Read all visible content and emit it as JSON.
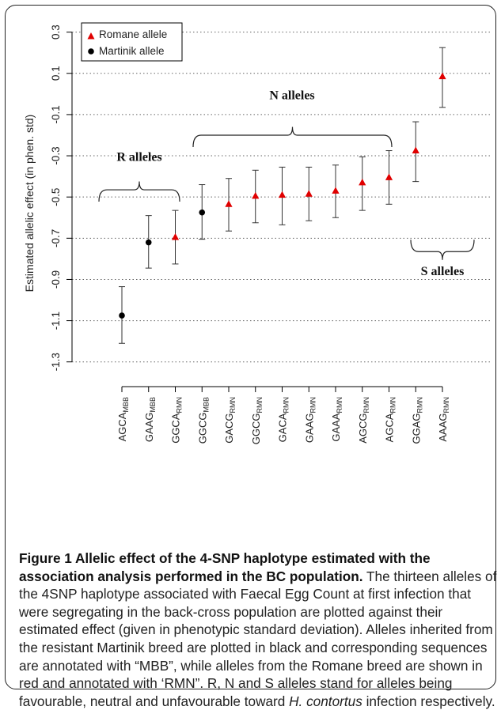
{
  "chart_data": {
    "type": "scatter",
    "ylabel": "Estimated allelic effect (in phen. std)",
    "ylim": [
      -1.42,
      0.36
    ],
    "yticks": [
      0.3,
      0.1,
      -0.1,
      -0.3,
      -0.5,
      -0.7,
      -0.9,
      -1.1,
      -1.3
    ],
    "ytick_labels": [
      "0.3",
      "0.1",
      "-0.1",
      "-0.3",
      "-0.5",
      "-0.7",
      "-0.9",
      "-1.1",
      "-1.3"
    ],
    "grid": "horizontal dotted",
    "legend_position": "top-left",
    "legend": [
      {
        "label": "Romane allele",
        "marker": "triangle",
        "color": "#e00000"
      },
      {
        "label": "Martinik allele",
        "marker": "circle",
        "color": "#000000"
      }
    ],
    "categories": [
      {
        "base": "AGCA",
        "sub": "MBB",
        "origin": "Martinik"
      },
      {
        "base": "GAAG",
        "sub": "MBB",
        "origin": "Martinik"
      },
      {
        "base": "GGCA",
        "sub": "RMN",
        "origin": "Romane"
      },
      {
        "base": "GGCG",
        "sub": "MBB",
        "origin": "Martinik"
      },
      {
        "base": "GACG",
        "sub": "RMN",
        "origin": "Romane"
      },
      {
        "base": "GGCG",
        "sub": "RMN",
        "origin": "Romane"
      },
      {
        "base": "GACA",
        "sub": "RMN",
        "origin": "Romane"
      },
      {
        "base": "GAAG",
        "sub": "RMN",
        "origin": "Romane"
      },
      {
        "base": "GAAA",
        "sub": "RMN",
        "origin": "Romane"
      },
      {
        "base": "AGCG",
        "sub": "RMN",
        "origin": "Romane"
      },
      {
        "base": "AGCA",
        "sub": "RMN",
        "origin": "Romane"
      },
      {
        "base": "GGAG",
        "sub": "RMN",
        "origin": "Romane"
      },
      {
        "base": "AAAG",
        "sub": "RMN",
        "origin": "Romane"
      }
    ],
    "values": [
      -1.075,
      -0.72,
      -0.695,
      -0.575,
      -0.535,
      -0.495,
      -0.49,
      -0.485,
      -0.47,
      -0.43,
      -0.405,
      -0.275,
      0.085
    ],
    "lower": [
      -1.21,
      -0.845,
      -0.825,
      -0.705,
      -0.665,
      -0.625,
      -0.635,
      -0.615,
      -0.6,
      -0.565,
      -0.535,
      -0.425,
      -0.065
    ],
    "upper": [
      -0.935,
      -0.59,
      -0.565,
      -0.44,
      -0.41,
      -0.37,
      -0.355,
      -0.355,
      -0.345,
      -0.305,
      -0.275,
      -0.135,
      0.225
    ],
    "groups": [
      {
        "label": "R alleles",
        "from": 0,
        "to": 2,
        "side": "above"
      },
      {
        "label": "N alleles",
        "from": 3,
        "to": 10,
        "side": "above"
      },
      {
        "label": "S alleles",
        "from": 11,
        "to": 12,
        "side": "below"
      }
    ]
  },
  "colors": {
    "romane": "#e00000",
    "martinik": "#000000"
  },
  "caption": {
    "title": "Figure 1 Allelic effect of the 4-SNP haplotype estimated with the association analysis performed in the BC population.",
    "body": " The thirteen alleles of the 4SNP haplotype associated with Faecal Egg Count at first infection that were segregating in the back-cross population are plotted against their estimated effect (given in phenotypic standard deviation). Alleles inherited from the resistant Martinik breed are plotted in black and corresponding sequences are annotated with “MBB”, while alleles from the Romane breed are shown in red and annotated with ‘RMN”. R, N and S alleles stand for alleles being favourable, neutral and unfavourable toward ",
    "species": "H. contortus",
    "tail": " infection respectively."
  }
}
